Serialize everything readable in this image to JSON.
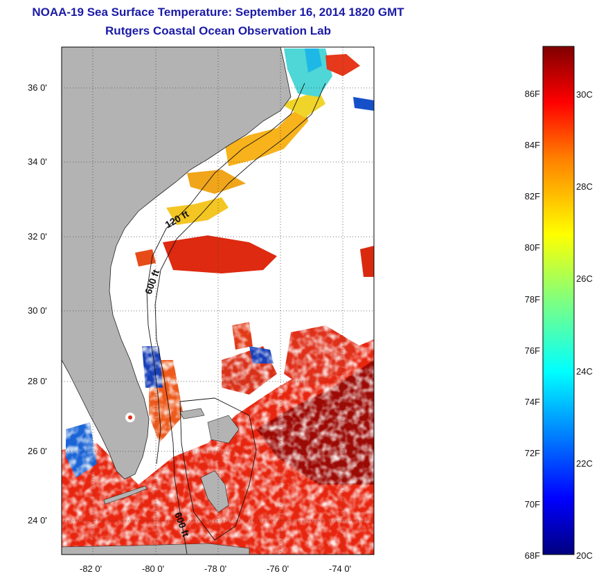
{
  "header": {
    "title": "NOAA-19 Sea Surface Temperature:  September 16, 2014 1820 GMT",
    "subtitle": "Rutgers Coastal Ocean Observation Lab"
  },
  "map": {
    "lat_labels": [
      "36 0'",
      "34 0'",
      "32 0'",
      "30 0'",
      "28 0'",
      "26 0'",
      "24 0'"
    ],
    "lon_labels": [
      "-82 0'",
      "-80 0'",
      "-78 0'",
      "-76 0'",
      "-74 0'"
    ],
    "contour_labels": [
      "120 ft",
      "600 ft",
      "600 ft"
    ],
    "colors": {
      "land": "#b3b3b3",
      "cloud": "#ffffff",
      "grid": "#444444"
    }
  },
  "colorbar": {
    "fahrenheit_labels": [
      "86F",
      "84F",
      "82F",
      "80F",
      "78F",
      "76F",
      "74F",
      "72F",
      "70F",
      "68F"
    ],
    "celsius_labels": [
      "30C",
      "28C",
      "26C",
      "24C",
      "22C",
      "20C"
    ],
    "colormap": [
      "#00007f",
      "#0000ff",
      "#007fff",
      "#00ffff",
      "#7fff7f",
      "#ffff00",
      "#ff7f00",
      "#ff0000",
      "#7f0000"
    ]
  }
}
